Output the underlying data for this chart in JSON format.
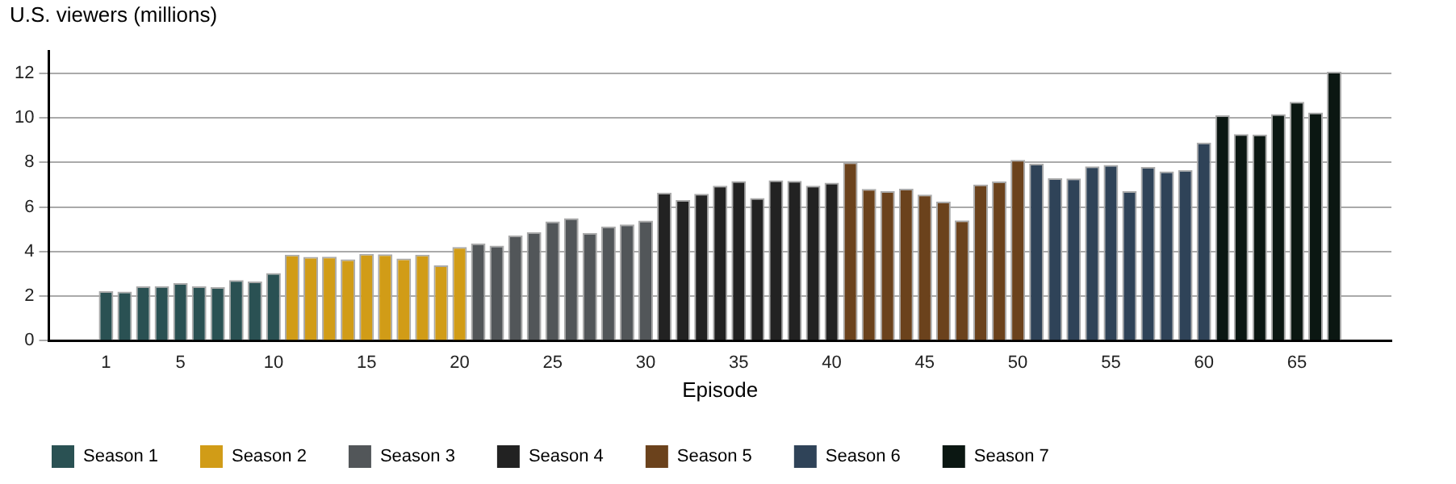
{
  "chart_data": {
    "type": "bar",
    "ylabel": "U.S. viewers (millions)",
    "xlabel": "Episode",
    "xlim": [
      0.5,
      67.5
    ],
    "xticks": [
      1,
      5,
      10,
      15,
      20,
      25,
      30,
      35,
      40,
      45,
      50,
      55,
      60,
      65
    ],
    "ylim": [
      0,
      13
    ],
    "yticks": [
      0,
      2,
      4,
      6,
      8,
      10,
      12
    ],
    "grid": "y",
    "legend": "bottom left",
    "series": [
      {
        "name": "Season 1",
        "color": "#2a5153",
        "x": [
          1,
          2,
          3,
          4,
          5,
          6,
          7,
          8,
          9,
          10
        ],
        "values": [
          2.22,
          2.2,
          2.44,
          2.45,
          2.58,
          2.44,
          2.4,
          2.72,
          2.66,
          3.04
        ]
      },
      {
        "name": "Season 2",
        "color": "#d19c17",
        "x": [
          11,
          12,
          13,
          14,
          15,
          16,
          17,
          18,
          19,
          20
        ],
        "values": [
          3.86,
          3.76,
          3.77,
          3.65,
          3.9,
          3.88,
          3.69,
          3.86,
          3.38,
          4.2
        ]
      },
      {
        "name": "Season 3",
        "color": "#525659",
        "x": [
          21,
          22,
          23,
          24,
          25,
          26,
          27,
          28,
          29,
          30
        ],
        "values": [
          4.37,
          4.27,
          4.72,
          4.87,
          5.35,
          5.5,
          4.84,
          5.13,
          5.22,
          5.39
        ]
      },
      {
        "name": "Season 4",
        "color": "#222222",
        "x": [
          31,
          32,
          33,
          34,
          35,
          36,
          37,
          38,
          39,
          40
        ],
        "values": [
          6.64,
          6.31,
          6.59,
          6.95,
          7.16,
          6.4,
          7.2,
          7.17,
          6.95,
          7.09
        ]
      },
      {
        "name": "Season 5",
        "color": "#6b421c",
        "x": [
          41,
          42,
          43,
          44,
          45,
          46,
          47,
          48,
          49,
          50
        ],
        "values": [
          8.0,
          6.81,
          6.71,
          6.82,
          6.56,
          6.24,
          5.4,
          7.01,
          7.14,
          8.11
        ]
      },
      {
        "name": "Season 6",
        "color": "#2f4358",
        "x": [
          51,
          52,
          53,
          54,
          55,
          56,
          57,
          58,
          59,
          60
        ],
        "values": [
          7.94,
          7.29,
          7.28,
          7.82,
          7.89,
          6.71,
          7.8,
          7.6,
          7.66,
          8.89
        ]
      },
      {
        "name": "Season 7",
        "color": "#0b1712",
        "x": [
          61,
          62,
          63,
          64,
          65,
          66,
          67
        ],
        "values": [
          10.11,
          9.27,
          9.25,
          10.17,
          10.72,
          10.24,
          12.07
        ]
      }
    ]
  }
}
